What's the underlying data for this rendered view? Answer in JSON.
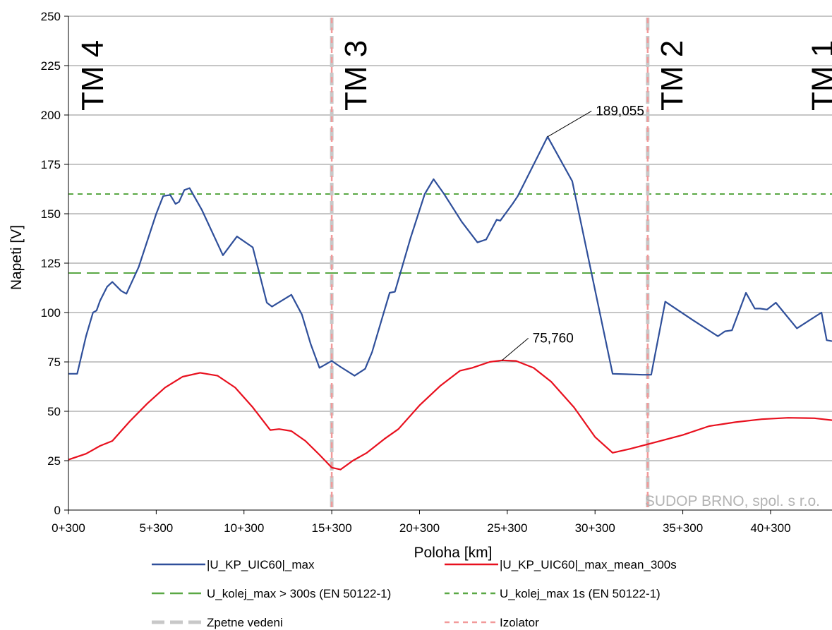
{
  "chart_data": {
    "type": "line",
    "xlabel": "Poloha [km]",
    "ylabel": "Napeti [V]",
    "xlim": [
      0,
      43.5
    ],
    "ylim": [
      0,
      250
    ],
    "yticks": [
      0,
      25,
      50,
      75,
      100,
      125,
      150,
      175,
      200,
      225,
      250
    ],
    "xticks": [
      {
        "value": 0,
        "label": "0+300"
      },
      {
        "value": 5,
        "label": "5+300"
      },
      {
        "value": 10,
        "label": "10+300"
      },
      {
        "value": 15,
        "label": "15+300"
      },
      {
        "value": 20,
        "label": "20+300"
      },
      {
        "value": 25,
        "label": "25+300"
      },
      {
        "value": 30,
        "label": "30+300"
      },
      {
        "value": 35,
        "label": "35+300"
      },
      {
        "value": 40,
        "label": "40+300"
      }
    ],
    "grid": "horizontal",
    "series": [
      {
        "name": "|U_KP_UIC60|_max",
        "color": "#2f4f9a",
        "style": "solid",
        "points": [
          [
            0,
            69
          ],
          [
            0.5,
            69
          ],
          [
            1,
            88
          ],
          [
            1.4,
            100
          ],
          [
            1.6,
            101
          ],
          [
            1.8,
            106
          ],
          [
            2.2,
            113
          ],
          [
            2.5,
            115.5
          ],
          [
            3,
            111
          ],
          [
            3.3,
            109.5
          ],
          [
            4,
            123
          ],
          [
            5,
            150
          ],
          [
            5.4,
            159
          ],
          [
            5.8,
            159.5
          ],
          [
            6.1,
            155
          ],
          [
            6.3,
            156
          ],
          [
            6.6,
            162
          ],
          [
            6.9,
            163
          ],
          [
            7.6,
            152
          ],
          [
            8.8,
            129
          ],
          [
            9.6,
            138.5
          ],
          [
            10.5,
            133
          ],
          [
            11.3,
            105
          ],
          [
            11.6,
            103
          ],
          [
            12.7,
            109
          ],
          [
            13.3,
            99
          ],
          [
            13.8,
            84
          ],
          [
            14.3,
            72
          ],
          [
            15,
            75.5
          ],
          [
            15.5,
            72.5
          ],
          [
            16.3,
            68
          ],
          [
            16.9,
            71.5
          ],
          [
            17.3,
            80
          ],
          [
            17.9,
            98
          ],
          [
            18.3,
            110
          ],
          [
            18.6,
            110.5
          ],
          [
            19.5,
            138
          ],
          [
            20.3,
            160
          ],
          [
            20.8,
            167.5
          ],
          [
            21.4,
            160
          ],
          [
            22.4,
            146
          ],
          [
            23.3,
            135.5
          ],
          [
            23.8,
            137
          ],
          [
            24.4,
            147
          ],
          [
            24.6,
            146.5
          ],
          [
            25.3,
            155
          ],
          [
            25.6,
            159
          ],
          [
            27.3,
            189
          ],
          [
            28.7,
            166.5
          ],
          [
            31,
            69
          ],
          [
            32.7,
            68.5
          ],
          [
            33.2,
            68.5
          ],
          [
            34,
            105.5
          ],
          [
            35.6,
            96
          ],
          [
            37,
            88
          ],
          [
            37.4,
            90.5
          ],
          [
            37.8,
            91
          ],
          [
            38.6,
            110
          ],
          [
            39.1,
            102
          ],
          [
            39.4,
            102
          ],
          [
            39.8,
            101.5
          ],
          [
            40.3,
            105
          ],
          [
            41.5,
            92
          ],
          [
            42.9,
            100
          ],
          [
            43.2,
            86
          ],
          [
            43.5,
            85.5
          ]
        ]
      },
      {
        "name": "|U_KP_UIC60|_max_mean_300s",
        "color": "#e8101e",
        "style": "solid",
        "points": [
          [
            0,
            25.5
          ],
          [
            1,
            28.5
          ],
          [
            1.8,
            32.5
          ],
          [
            2.5,
            35
          ],
          [
            3.5,
            45
          ],
          [
            4.5,
            54
          ],
          [
            5.5,
            62
          ],
          [
            6.5,
            67.5
          ],
          [
            7.5,
            69.5
          ],
          [
            8.5,
            68
          ],
          [
            9.5,
            62
          ],
          [
            10.5,
            52
          ],
          [
            11.5,
            40.5
          ],
          [
            12,
            41
          ],
          [
            12.7,
            40
          ],
          [
            13.5,
            35
          ],
          [
            14.3,
            28
          ],
          [
            15,
            21.5
          ],
          [
            15.5,
            20.5
          ],
          [
            16.2,
            25
          ],
          [
            17,
            29
          ],
          [
            18,
            36
          ],
          [
            18.8,
            41
          ],
          [
            20,
            53
          ],
          [
            21.2,
            63
          ],
          [
            22.3,
            70.5
          ],
          [
            23,
            72
          ],
          [
            24,
            75
          ],
          [
            24.7,
            75.8
          ],
          [
            25.5,
            75.5
          ],
          [
            26.5,
            72
          ],
          [
            27.5,
            65
          ],
          [
            28.8,
            52
          ],
          [
            30,
            37
          ],
          [
            31,
            29
          ],
          [
            32,
            31
          ],
          [
            33.5,
            34.5
          ],
          [
            35,
            38
          ],
          [
            36.5,
            42.5
          ],
          [
            38,
            44.5
          ],
          [
            39.5,
            46
          ],
          [
            41,
            46.7
          ],
          [
            42.5,
            46.5
          ],
          [
            43.5,
            45.5
          ]
        ]
      },
      {
        "name": "U_kolej_max > 300s (EN 50122-1)",
        "color": "#5aa845",
        "style": "long-dash",
        "points": [
          [
            0,
            120
          ],
          [
            43.5,
            120
          ]
        ]
      },
      {
        "name": "U_kolej_max 1s (EN 50122-1)",
        "color": "#5aa845",
        "style": "short-dash",
        "points": [
          [
            0,
            160
          ],
          [
            43.5,
            160
          ]
        ]
      }
    ],
    "vertical_markers": [
      {
        "x": 15,
        "series": [
          "Zpetne vedeni",
          "Izolator"
        ]
      },
      {
        "x": 33,
        "series": [
          "Zpetne vedeni",
          "Izolator"
        ]
      }
    ],
    "zones": [
      {
        "label": "TM 4",
        "x": 0.6
      },
      {
        "label": "TM 3",
        "x": 15.6
      },
      {
        "label": "TM 2",
        "x": 33.6
      },
      {
        "label": "TM 1",
        "x": 42.2
      }
    ],
    "annotations": [
      {
        "label": "189,055",
        "x": 27.3,
        "y": 189,
        "text_x": 29.8,
        "text_y": 202
      },
      {
        "label": "75,760",
        "x": 24.7,
        "y": 75.8,
        "text_x": 26.2,
        "text_y": 87
      }
    ],
    "watermark": "SUDOP BRNO, spol. s r.o.",
    "legend": {
      "position": "bottom",
      "entries": [
        {
          "label": "|U_KP_UIC60|_max",
          "color": "#2f4f9a",
          "style": "solid"
        },
        {
          "label": "|U_KP_UIC60|_max_mean_300s",
          "color": "#e8101e",
          "style": "solid"
        },
        {
          "label": "U_kolej_max > 300s (EN 50122-1)",
          "color": "#5aa845",
          "style": "long-dash"
        },
        {
          "label": "U_kolej_max 1s (EN 50122-1)",
          "color": "#5aa845",
          "style": "short-dash"
        },
        {
          "label": "Zpetne vedeni",
          "color": "#c8c8c8",
          "style": "long-dash"
        },
        {
          "label": "Izolator",
          "color": "#f29a9a",
          "style": "short-dash"
        }
      ]
    }
  }
}
